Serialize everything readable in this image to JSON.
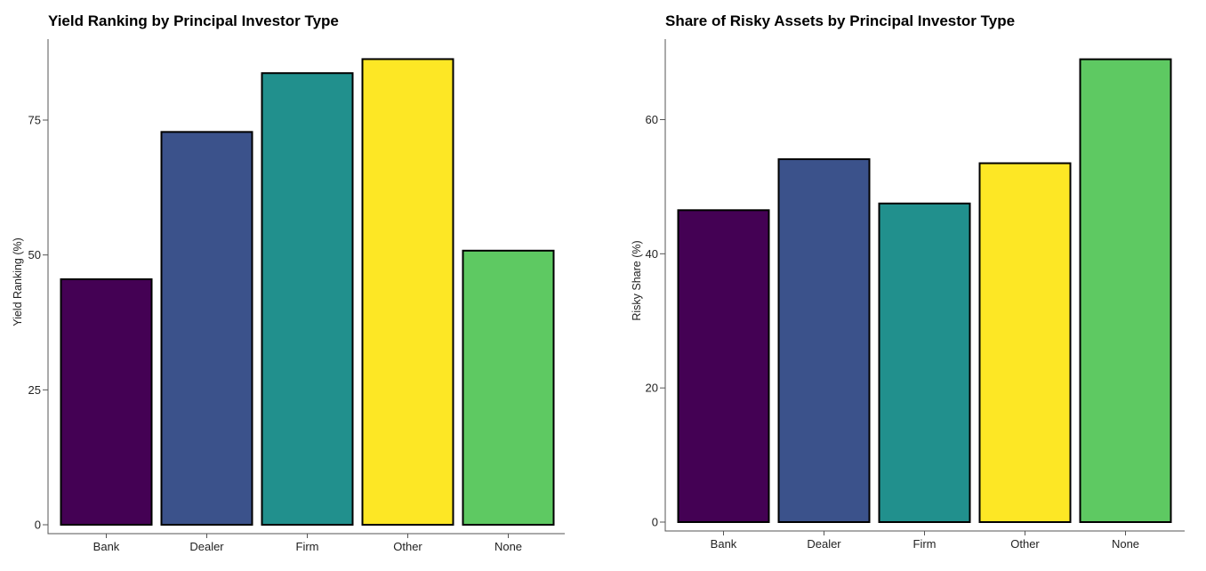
{
  "chart_data": [
    {
      "type": "bar",
      "title": "Yield Ranking by Principal Investor Type",
      "xlabel": "",
      "ylabel": "Yield Ranking (%)",
      "categories": [
        "Bank",
        "Dealer",
        "Firm",
        "Other",
        "None"
      ],
      "values": [
        45.5,
        72.8,
        83.7,
        86.3,
        50.8
      ],
      "colors": [
        "#440154",
        "#3b528b",
        "#21908d",
        "#fde725",
        "#5ec962"
      ],
      "ylim": [
        0,
        90
      ],
      "yticks": [
        0,
        25,
        50,
        75
      ],
      "grid": false,
      "legend": "none"
    },
    {
      "type": "bar",
      "title": "Share of Risky Assets by Principal Investor Type",
      "xlabel": "",
      "ylabel": "Risky Share (%)",
      "categories": [
        "Bank",
        "Dealer",
        "Firm",
        "Other",
        "None"
      ],
      "values": [
        46.5,
        54.1,
        47.5,
        53.5,
        69.0
      ],
      "colors": [
        "#440154",
        "#3b528b",
        "#21908d",
        "#fde725",
        "#5ec962"
      ],
      "ylim": [
        0,
        72
      ],
      "yticks": [
        0,
        20,
        40,
        60
      ],
      "grid": false,
      "legend": "none"
    }
  ]
}
